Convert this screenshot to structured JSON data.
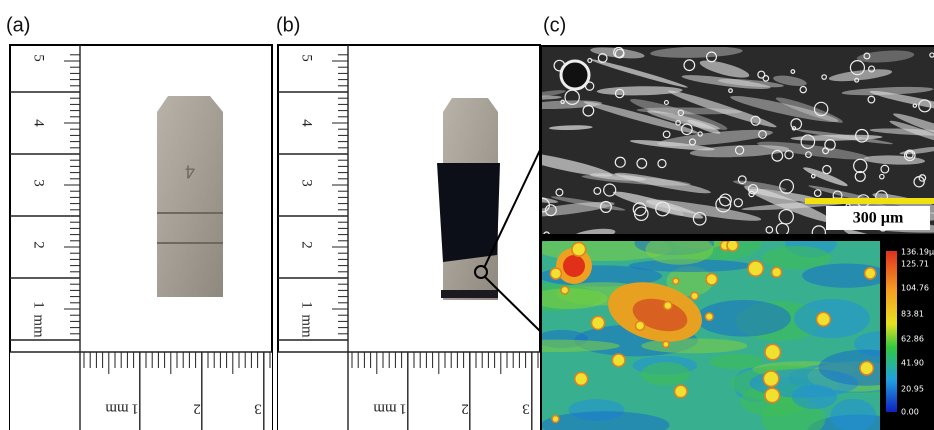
{
  "panels": [
    {
      "label": "(a)",
      "ruler_vertical": {
        "labels": [
          "5",
          "4",
          "3",
          "2",
          "1"
        ],
        "unit": "mm"
      },
      "ruler_horizontal": {
        "unit": "mm",
        "labels": [
          "1",
          "2",
          "3"
        ]
      },
      "sample_marking": "4"
    },
    {
      "label": "(b)",
      "ruler_vertical": {
        "labels": [
          "5",
          "4",
          "3",
          "2",
          "1"
        ],
        "unit": "mm"
      },
      "ruler_horizontal": {
        "unit": "mm",
        "labels": [
          "1",
          "2",
          "3"
        ]
      }
    },
    {
      "label": "(c)",
      "scale_bar": "300 µm",
      "colorbar": {
        "labels": [
          "136.19µ",
          "125.71",
          "104.76",
          "83.81",
          "62.86",
          "41.90",
          "20.95",
          "0.00"
        ]
      }
    }
  ]
}
